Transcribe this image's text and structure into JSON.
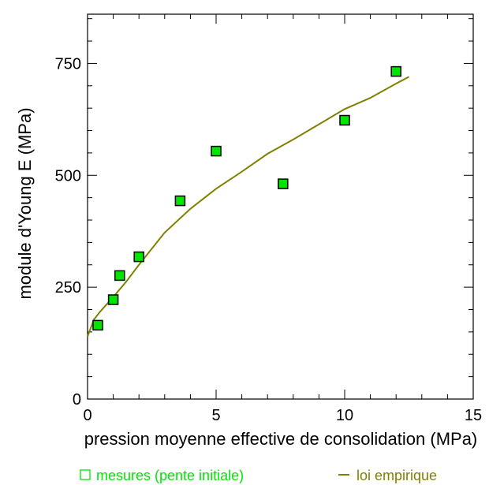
{
  "chart_data": {
    "type": "scatter",
    "title": "",
    "xlabel": "pression moyenne effective de consolidation (MPa)",
    "ylabel": "module d'Young E (MPa)",
    "xlim": [
      0,
      15
    ],
    "ylim": [
      0,
      860
    ],
    "x_ticks": [
      "0",
      "5",
      "10",
      "15"
    ],
    "y_ticks": [
      "0",
      "250",
      "500",
      "750"
    ],
    "grid": false,
    "legend_position": "bottom",
    "series": [
      {
        "name": "mesures (pente initiale)",
        "type": "scatter",
        "marker": "square",
        "color": "#00e600",
        "points": [
          {
            "x": 0.4,
            "y": 165
          },
          {
            "x": 1.0,
            "y": 222
          },
          {
            "x": 1.25,
            "y": 276
          },
          {
            "x": 2.0,
            "y": 318
          },
          {
            "x": 3.6,
            "y": 443
          },
          {
            "x": 5.0,
            "y": 554
          },
          {
            "x": 7.6,
            "y": 481
          },
          {
            "x": 10.0,
            "y": 623
          },
          {
            "x": 12.0,
            "y": 732
          }
        ]
      },
      {
        "name": "loi empirique",
        "type": "line",
        "color": "#808000",
        "points": [
          {
            "x": 0.0,
            "y": 140
          },
          {
            "x": 0.25,
            "y": 178
          },
          {
            "x": 0.5,
            "y": 196
          },
          {
            "x": 1.0,
            "y": 228
          },
          {
            "x": 1.5,
            "y": 262
          },
          {
            "x": 2.0,
            "y": 300
          },
          {
            "x": 3.0,
            "y": 372
          },
          {
            "x": 4.0,
            "y": 425
          },
          {
            "x": 5.0,
            "y": 470
          },
          {
            "x": 6.0,
            "y": 508
          },
          {
            "x": 7.0,
            "y": 548
          },
          {
            "x": 8.0,
            "y": 580
          },
          {
            "x": 9.0,
            "y": 614
          },
          {
            "x": 10.0,
            "y": 648
          },
          {
            "x": 11.0,
            "y": 673
          },
          {
            "x": 12.0,
            "y": 705
          },
          {
            "x": 12.5,
            "y": 720
          }
        ]
      }
    ]
  }
}
